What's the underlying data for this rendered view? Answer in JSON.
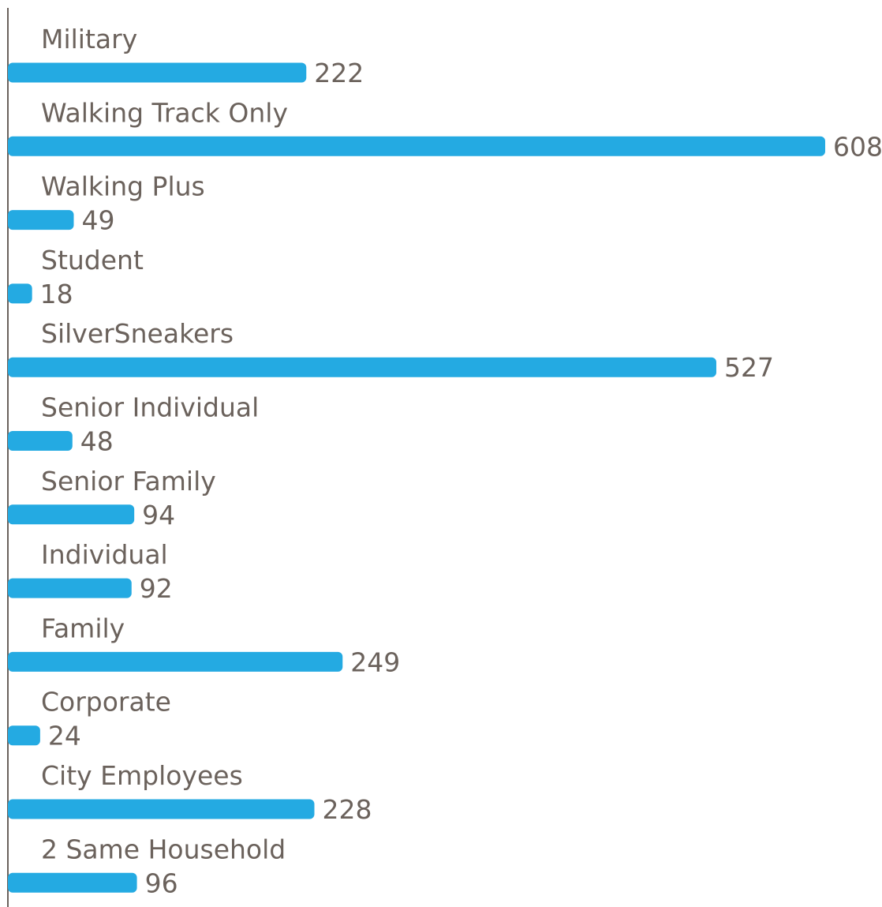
{
  "colors": {
    "bar": "#24aae2",
    "text": "#6b625c",
    "axis": "#6b625c"
  },
  "chart_data": {
    "type": "bar",
    "orientation": "horizontal",
    "title": "",
    "xlabel": "",
    "ylabel": "",
    "grid": false,
    "legend": "none",
    "xlim": [
      0,
      608
    ],
    "categories": [
      "Military",
      "Walking Track Only",
      "Walking Plus",
      "Student",
      "SilverSneakers",
      "Senior Individual",
      "Senior Family",
      "Individual",
      "Family",
      "Corporate",
      "City Employees",
      "2 Same Household"
    ],
    "values": [
      222,
      608,
      49,
      18,
      527,
      48,
      94,
      92,
      249,
      24,
      228,
      96
    ],
    "value_labels": [
      "222",
      "608",
      "49",
      "18",
      "527",
      "48",
      "94",
      "92",
      "249",
      "24",
      "228",
      "96"
    ]
  }
}
